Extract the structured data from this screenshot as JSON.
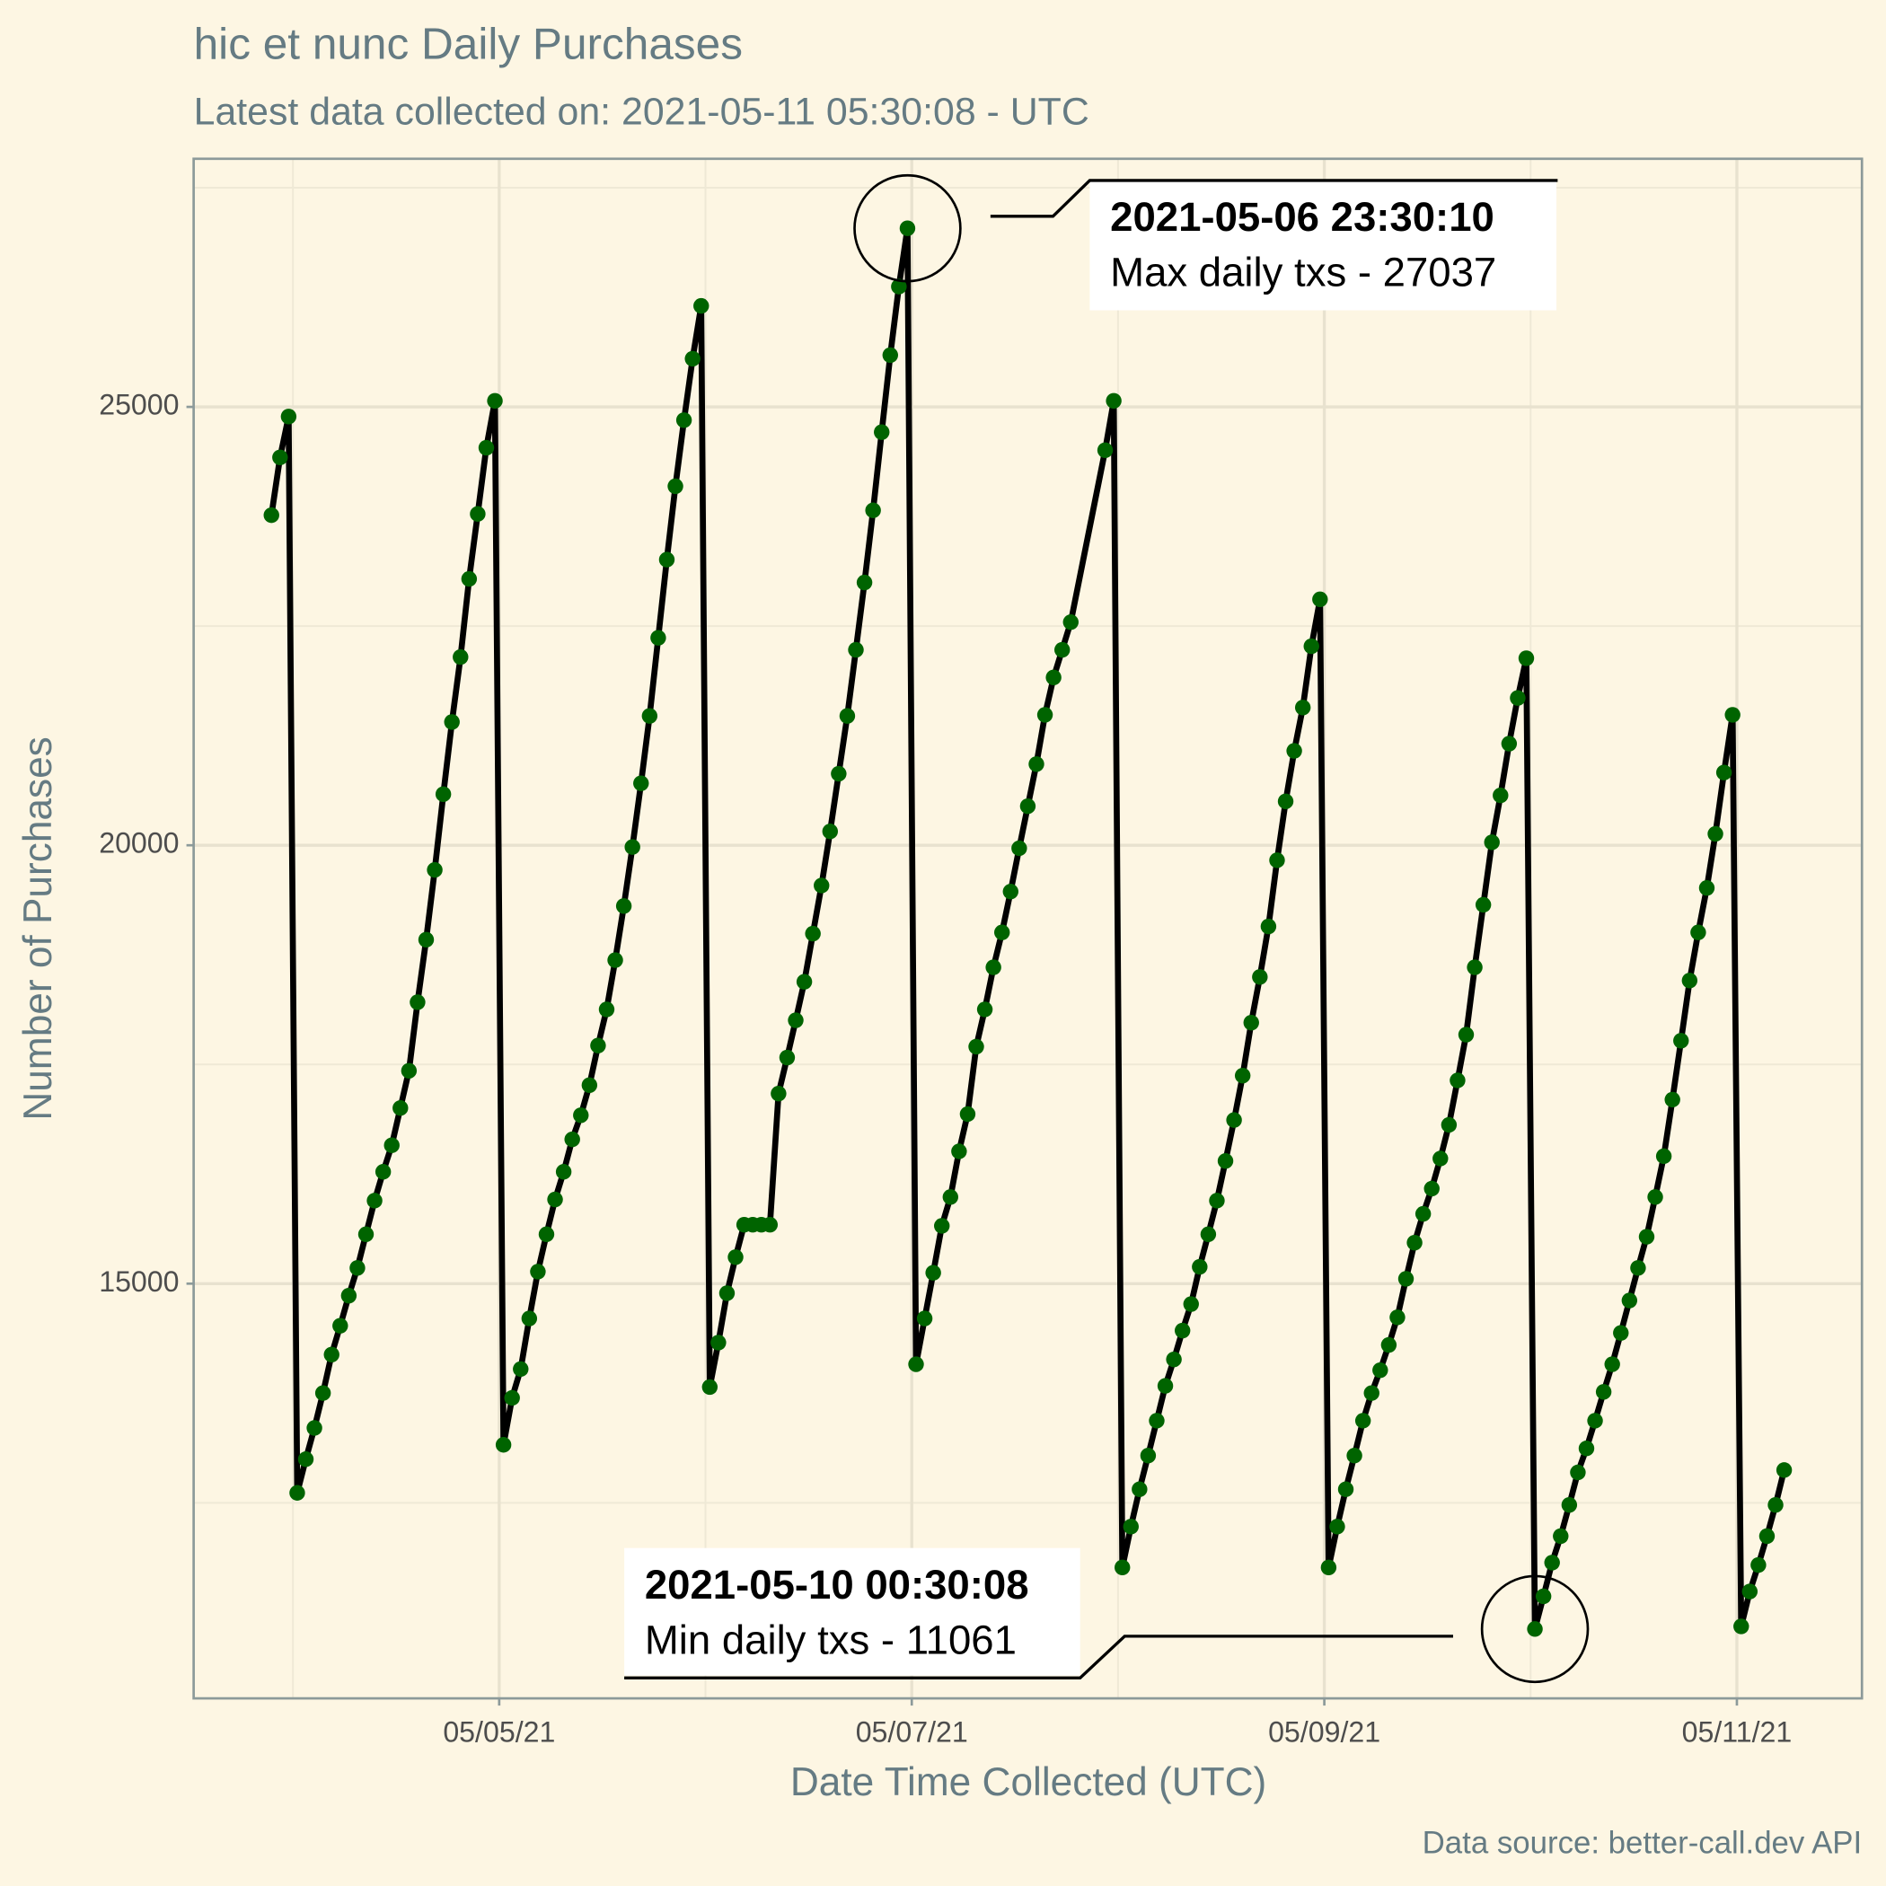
{
  "chart_data": {
    "type": "line",
    "title": "hic et nunc Daily Purchases",
    "subtitle": "Latest data collected on: 2021-05-11 05:30:08  - UTC",
    "x_label": "Date Time Collected (UTC)",
    "y_label": "Number of Purchases",
    "caption": "Data source: better-call.dev API",
    "line_color": "#000000",
    "color": "#006400",
    "grid": true,
    "ylim": [
      10270,
      27830
    ],
    "yticks": [
      15000,
      20000,
      25000
    ],
    "y_minor_grid": [
      12500,
      17500,
      22500,
      27500
    ],
    "xlim": [
      "2021-05-03 12:27",
      "2021-05-11 14:33"
    ],
    "xticks": [
      {
        "value": "2021-05-05",
        "label": "05/05/21"
      },
      {
        "value": "2021-05-07",
        "label": "05/07/21"
      },
      {
        "value": "2021-05-09",
        "label": "05/09/21"
      },
      {
        "value": "2021-05-11",
        "label": "05/11/21"
      }
    ],
    "x_minor_grid": [
      "2021-05-04",
      "2021-05-06",
      "2021-05-08",
      "2021-05-10"
    ],
    "annotations": [
      {
        "title": "2021-05-06 23:30:10",
        "text": "Max daily txs - 27037"
      },
      {
        "title": "2021-05-10 00:30:08",
        "text": "Min daily txs - 11061"
      }
    ],
    "x": [
      "2021-05-03 21:30",
      "2021-05-03 22:30",
      "2021-05-03 23:30",
      "2021-05-04 00:30",
      "2021-05-04 01:30",
      "2021-05-04 02:30",
      "2021-05-04 03:30",
      "2021-05-04 04:30",
      "2021-05-04 05:30",
      "2021-05-04 06:30",
      "2021-05-04 07:30",
      "2021-05-04 08:30",
      "2021-05-04 09:30",
      "2021-05-04 10:30",
      "2021-05-04 11:30",
      "2021-05-04 12:30",
      "2021-05-04 13:30",
      "2021-05-04 14:30",
      "2021-05-04 15:30",
      "2021-05-04 16:30",
      "2021-05-04 17:30",
      "2021-05-04 18:30",
      "2021-05-04 19:30",
      "2021-05-04 20:30",
      "2021-05-04 21:30",
      "2021-05-04 22:30",
      "2021-05-04 23:30",
      "2021-05-05 00:30",
      "2021-05-05 01:30",
      "2021-05-05 02:30",
      "2021-05-05 03:30",
      "2021-05-05 04:30",
      "2021-05-05 05:30",
      "2021-05-05 06:30",
      "2021-05-05 07:30",
      "2021-05-05 08:30",
      "2021-05-05 09:30",
      "2021-05-05 10:30",
      "2021-05-05 11:30",
      "2021-05-05 12:30",
      "2021-05-05 13:30",
      "2021-05-05 14:30",
      "2021-05-05 15:30",
      "2021-05-05 16:30",
      "2021-05-05 17:30",
      "2021-05-05 18:30",
      "2021-05-05 19:30",
      "2021-05-05 20:30",
      "2021-05-05 21:30",
      "2021-05-05 22:30",
      "2021-05-05 23:30",
      "2021-05-06 00:30",
      "2021-05-06 01:30",
      "2021-05-06 02:30",
      "2021-05-06 03:30",
      "2021-05-06 04:30",
      "2021-05-06 05:30",
      "2021-05-06 06:30",
      "2021-05-06 07:30",
      "2021-05-06 08:30",
      "2021-05-06 09:30",
      "2021-05-06 10:30",
      "2021-05-06 11:30",
      "2021-05-06 12:30",
      "2021-05-06 13:30",
      "2021-05-06 14:30",
      "2021-05-06 15:30",
      "2021-05-06 16:30",
      "2021-05-06 17:30",
      "2021-05-06 18:30",
      "2021-05-06 19:30",
      "2021-05-06 20:30",
      "2021-05-06 21:30",
      "2021-05-06 22:30",
      "2021-05-06 23:30",
      "2021-05-07 00:30",
      "2021-05-07 01:30",
      "2021-05-07 02:30",
      "2021-05-07 03:30",
      "2021-05-07 04:30",
      "2021-05-07 05:30",
      "2021-05-07 06:30",
      "2021-05-07 07:30",
      "2021-05-07 08:30",
      "2021-05-07 09:30",
      "2021-05-07 10:30",
      "2021-05-07 11:30",
      "2021-05-07 12:30",
      "2021-05-07 13:30",
      "2021-05-07 14:30",
      "2021-05-07 15:30",
      "2021-05-07 16:30",
      "2021-05-07 17:30",
      "2021-05-07 18:30",
      "2021-05-07 22:30",
      "2021-05-07 23:30",
      "2021-05-08 00:30",
      "2021-05-08 01:30",
      "2021-05-08 02:30",
      "2021-05-08 03:30",
      "2021-05-08 04:30",
      "2021-05-08 05:30",
      "2021-05-08 06:30",
      "2021-05-08 07:30",
      "2021-05-08 08:30",
      "2021-05-08 09:30",
      "2021-05-08 10:30",
      "2021-05-08 11:30",
      "2021-05-08 12:30",
      "2021-05-08 13:30",
      "2021-05-08 14:30",
      "2021-05-08 15:30",
      "2021-05-08 16:30",
      "2021-05-08 17:30",
      "2021-05-08 18:30",
      "2021-05-08 19:30",
      "2021-05-08 20:30",
      "2021-05-08 21:30",
      "2021-05-08 22:30",
      "2021-05-08 23:30",
      "2021-05-09 00:30",
      "2021-05-09 01:30",
      "2021-05-09 02:30",
      "2021-05-09 03:30",
      "2021-05-09 04:30",
      "2021-05-09 05:30",
      "2021-05-09 06:30",
      "2021-05-09 07:30",
      "2021-05-09 08:30",
      "2021-05-09 09:30",
      "2021-05-09 10:30",
      "2021-05-09 11:30",
      "2021-05-09 12:30",
      "2021-05-09 13:30",
      "2021-05-09 14:30",
      "2021-05-09 15:30",
      "2021-05-09 16:30",
      "2021-05-09 17:30",
      "2021-05-09 18:30",
      "2021-05-09 19:30",
      "2021-05-09 20:30",
      "2021-05-09 21:30",
      "2021-05-09 22:30",
      "2021-05-09 23:30",
      "2021-05-10 00:30",
      "2021-05-10 01:30",
      "2021-05-10 02:30",
      "2021-05-10 03:30",
      "2021-05-10 04:30",
      "2021-05-10 05:30",
      "2021-05-10 06:30",
      "2021-05-10 07:30",
      "2021-05-10 08:30",
      "2021-05-10 09:30",
      "2021-05-10 10:30",
      "2021-05-10 11:30",
      "2021-05-10 12:30",
      "2021-05-10 13:30",
      "2021-05-10 14:30",
      "2021-05-10 15:30",
      "2021-05-10 16:30",
      "2021-05-10 17:30",
      "2021-05-10 18:30",
      "2021-05-10 19:30",
      "2021-05-10 20:30",
      "2021-05-10 21:30",
      "2021-05-10 22:30",
      "2021-05-10 23:30",
      "2021-05-11 00:30",
      "2021-05-11 01:30",
      "2021-05-11 02:30",
      "2021-05-11 03:30",
      "2021-05-11 04:30",
      "2021-05-11 05:30"
    ],
    "values": [
      23765,
      24424,
      24890,
      12614,
      12998,
      13354,
      13752,
      14191,
      14520,
      14863,
      15179,
      15563,
      15947,
      16276,
      16578,
      17003,
      17428,
      18210,
      18923,
      19719,
      20583,
      21406,
      22147,
      23038,
      23779,
      24534,
      25069,
      13162,
      13697,
      14026,
      14603,
      15137,
      15563,
      15960,
      16276,
      16646,
      16921,
      17264,
      17716,
      18128,
      18690,
      19307,
      19980,
      20707,
      21475,
      22366,
      23258,
      24095,
      24849,
      25549,
      26152,
      13821,
      14328,
      14891,
      15302,
      15672,
      15672,
      15672,
      15672,
      17168,
      17579,
      18004,
      18443,
      18992,
      19541,
      20158,
      20816,
      21475,
      22229,
      22997,
      23820,
      24712,
      25590,
      26372,
      27037,
      14081,
      14603,
      15124,
      15659,
      15988,
      16509,
      16934,
      17703,
      18128,
      18608,
      19006,
      19472,
      19966,
      20446,
      20926,
      21488,
      21914,
      22229,
      22545,
      24506,
      25069,
      11763,
      12229,
      12655,
      13039,
      13437,
      13834,
      14136,
      14465,
      14767,
      15192,
      15563,
      15947,
      16399,
      16866,
      17373,
      17977,
      18498,
      19074,
      19829,
      20501,
      21077,
      21571,
      22270,
      22805,
      11763,
      12229,
      12655,
      13039,
      13437,
      13752,
      14013,
      14301,
      14616,
      15055,
      15467,
      15796,
      16084,
      16427,
      16811,
      17318,
      17840,
      18608,
      19321,
      20034,
      20569,
      21159,
      21680,
      22133,
      11061,
      11434,
      11818,
      12120,
      12476,
      12847,
      13121,
      13437,
      13766,
      14081,
      14438,
      14808,
      15179,
      15535,
      15988,
      16454,
      17099,
      17771,
      18457,
      19006,
      19513,
      20130,
      20830,
      21488,
      11091,
      11489,
      11791,
      12120,
      12476,
      12874
    ]
  }
}
